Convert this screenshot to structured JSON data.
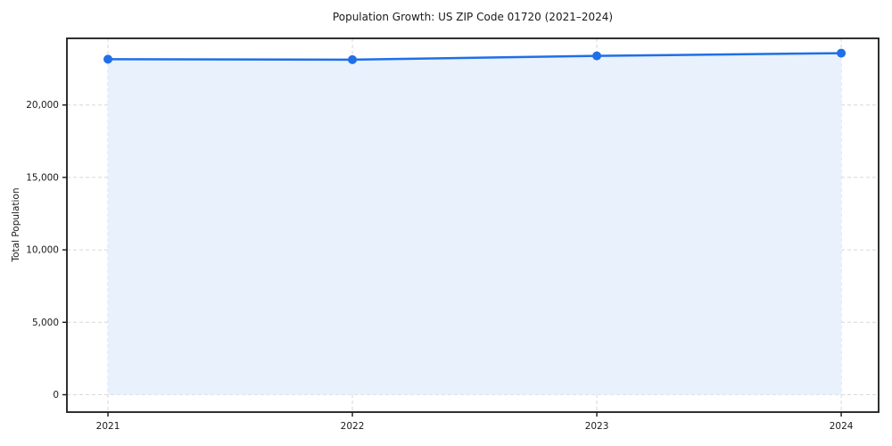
{
  "chart_data": {
    "type": "area",
    "title": "Population Growth: US ZIP Code 01720 (2021–2024)",
    "xlabel": "",
    "ylabel": "Total Population",
    "x": [
      2021,
      2022,
      2023,
      2024
    ],
    "series": [
      {
        "name": "Total Population",
        "values": [
          23160,
          23130,
          23390,
          23580
        ]
      }
    ],
    "xticks": [
      {
        "value": 2021,
        "label": "2021"
      },
      {
        "value": 2022,
        "label": "2022"
      },
      {
        "value": 2023,
        "label": "2023"
      },
      {
        "value": 2024,
        "label": "2024"
      }
    ],
    "yticks": [
      {
        "value": 0,
        "label": "0"
      },
      {
        "value": 5000,
        "label": "5,000"
      },
      {
        "value": 10000,
        "label": "10,000"
      },
      {
        "value": 15000,
        "label": "15,000"
      },
      {
        "value": 20000,
        "label": "20,000"
      }
    ],
    "xlim": [
      2020.832,
      2024.153
    ],
    "ylim": [
      -1200,
      24600
    ],
    "grid": true,
    "grid_style": "dashed",
    "legend": false,
    "colors": {
      "line": "#1f6fe8",
      "marker": "#1f6fe8",
      "fill": "#e8f1fc",
      "grid": "#d7d7d7",
      "axis": "#1a1a1a",
      "text": "#1a1a1a",
      "background": "#ffffff"
    }
  }
}
